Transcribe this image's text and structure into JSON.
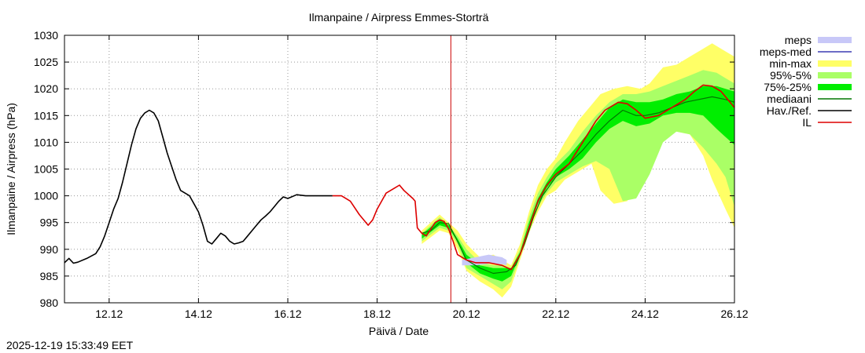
{
  "chart_data": {
    "type": "line",
    "title": "Ilmanpaine / Airpress Emmes-Storträ",
    "xlabel": "Päivä / Date",
    "ylabel": "Ilmanpaine / Airpress (hPa)",
    "timestamp": "2025-12-19 15:33:49 EET",
    "xlim": [
      11.0,
      26.0
    ],
    "ylim": [
      980,
      1030
    ],
    "x_unit": "day of December",
    "x_ticks": [
      {
        "x": 12,
        "label": "12.12"
      },
      {
        "x": 14,
        "label": "14.12"
      },
      {
        "x": 16,
        "label": "16.12"
      },
      {
        "x": 18,
        "label": "18.12"
      },
      {
        "x": 20,
        "label": "20.12"
      },
      {
        "x": 22,
        "label": "22.12"
      },
      {
        "x": 24,
        "label": "24.12"
      },
      {
        "x": 26,
        "label": "26.12"
      }
    ],
    "y_ticks": [
      980,
      985,
      990,
      995,
      1000,
      1005,
      1010,
      1015,
      1020,
      1025,
      1030
    ],
    "grid": true,
    "now_line_x": 19.65,
    "legend": [
      {
        "label": "meps",
        "kind": "band",
        "color": "#c8c8f8"
      },
      {
        "label": "meps-med",
        "kind": "line",
        "color": "#3c3cb4"
      },
      {
        "label": "min-max",
        "kind": "band",
        "color": "#ffff66"
      },
      {
        "label": "95%-5%",
        "kind": "band",
        "color": "#aaff66"
      },
      {
        "label": "75%-25%",
        "kind": "band",
        "color": "#00ee00"
      },
      {
        "label": "mediaani",
        "kind": "line",
        "color": "#007700"
      },
      {
        "label": "Hav./Ref.",
        "kind": "line",
        "color": "#000000"
      },
      {
        "label": "IL",
        "kind": "line",
        "color": "#dd0000"
      }
    ],
    "series": {
      "observed": {
        "name": "Hav./Ref.",
        "x": [
          11.0,
          11.1,
          11.2,
          11.3,
          11.5,
          11.7,
          11.8,
          11.9,
          12.0,
          12.1,
          12.2,
          12.3,
          12.4,
          12.5,
          12.6,
          12.7,
          12.8,
          12.9,
          13.0,
          13.1,
          13.2,
          13.3,
          13.4,
          13.5,
          13.6,
          13.7,
          13.8,
          13.9,
          14.0,
          14.1,
          14.2,
          14.3,
          14.4,
          14.5,
          14.6,
          14.7,
          14.8,
          14.9,
          15.0,
          15.1,
          15.2,
          15.3,
          15.4,
          15.5,
          15.6,
          15.7,
          15.8,
          15.9,
          16.0,
          16.2,
          16.4,
          16.6,
          16.8,
          17.0
        ],
        "y": [
          987.5,
          988.3,
          987.4,
          987.6,
          988.3,
          989.2,
          990.5,
          992.5,
          995.0,
          997.5,
          999.5,
          1002.5,
          1006.0,
          1009.5,
          1012.5,
          1014.5,
          1015.5,
          1016.0,
          1015.5,
          1014.0,
          1011.0,
          1008.0,
          1005.5,
          1003.0,
          1001.0,
          1000.5,
          1000.0,
          998.5,
          997.0,
          994.5,
          991.5,
          991.0,
          992.0,
          993.0,
          992.5,
          991.5,
          991.0,
          991.2,
          991.5,
          992.5,
          993.5,
          994.5,
          995.5,
          996.2,
          997.0,
          998.0,
          999.0,
          999.8,
          999.5,
          1000.2,
          1000.0,
          1000.0,
          1000.0,
          1000.0
        ]
      },
      "il": {
        "name": "IL",
        "x": [
          17.0,
          17.2,
          17.4,
          17.6,
          17.8,
          17.9,
          18.0,
          18.2,
          18.4,
          18.5,
          18.6,
          18.8,
          18.85,
          18.9,
          19.0,
          19.1,
          19.2,
          19.3,
          19.4,
          19.5,
          19.6,
          19.7,
          19.8,
          20.0,
          20.2,
          20.5,
          20.8,
          21.0,
          21.2,
          21.4,
          21.6,
          21.8,
          22.0,
          22.3,
          22.6,
          22.9,
          23.1,
          23.4,
          23.6,
          23.8,
          24.0,
          24.3,
          24.6,
          24.9,
          25.1,
          25.3,
          25.5,
          25.7,
          26.0
        ],
        "y": [
          1000.0,
          1000.0,
          999.0,
          996.5,
          994.5,
          995.5,
          997.5,
          1000.5,
          1001.5,
          1002.0,
          1001.0,
          999.5,
          999.0,
          994.0,
          993.0,
          992.5,
          993.8,
          995.0,
          995.5,
          995.2,
          993.8,
          991.5,
          989.0,
          988.0,
          987.5,
          987.5,
          987.0,
          986.2,
          989.0,
          994.0,
          999.0,
          1002.0,
          1004.0,
          1006.0,
          1010.0,
          1014.0,
          1016.0,
          1017.5,
          1017.2,
          1016.0,
          1014.5,
          1015.0,
          1016.5,
          1018.0,
          1019.5,
          1020.7,
          1020.5,
          1019.5,
          1016.5
        ]
      },
      "median": {
        "name": "mediaani",
        "x": [
          19.0,
          19.2,
          19.4,
          19.6,
          19.8,
          20.0,
          20.3,
          20.6,
          20.9,
          21.1,
          21.3,
          21.5,
          21.7,
          22.0,
          22.3,
          22.6,
          22.9,
          23.2,
          23.5,
          23.8,
          24.0,
          24.3,
          24.6,
          24.9,
          25.2,
          25.5,
          25.8,
          26.0
        ],
        "y": [
          993.0,
          993.5,
          995.0,
          994.8,
          991.5,
          988.0,
          986.5,
          985.5,
          985.8,
          987.0,
          991.0,
          996.0,
          1000.0,
          1003.5,
          1006.0,
          1008.5,
          1011.5,
          1014.0,
          1016.0,
          1015.0,
          1015.0,
          1015.5,
          1016.5,
          1017.5,
          1018.0,
          1018.5,
          1018.0,
          1017.5
        ]
      },
      "minmax": {
        "name": "min-max",
        "x": [
          19.0,
          19.4,
          19.6,
          19.8,
          20.0,
          20.3,
          20.6,
          20.8,
          21.0,
          21.2,
          21.4,
          21.6,
          21.8,
          22.0,
          22.2,
          22.5,
          22.8,
          23.0,
          23.3,
          23.6,
          23.9,
          24.1,
          24.4,
          24.7,
          25.0,
          25.3,
          25.5,
          25.8,
          26.0
        ],
        "upper": [
          993.5,
          996.5,
          995.0,
          993.5,
          991.0,
          988.5,
          989.0,
          988.0,
          987.0,
          991.0,
          997.0,
          1002.0,
          1005.0,
          1007.0,
          1010.0,
          1014.0,
          1017.0,
          1019.0,
          1020.0,
          1020.5,
          1020.0,
          1021.0,
          1024.0,
          1024.5,
          1026.0,
          1027.5,
          1028.5,
          1027.0,
          1026.0
        ],
        "lower": [
          991.0,
          993.5,
          993.0,
          990.0,
          986.0,
          984.0,
          982.5,
          981.0,
          983.0,
          988.0,
          993.0,
          997.0,
          1000.0,
          1001.0,
          1003.0,
          1004.5,
          1006.0,
          1001.0,
          998.5,
          999.0,
          1004.0,
          1008.0,
          1012.0,
          1012.0,
          1011.5,
          1007.5,
          1003.0,
          997.5,
          994.0
        ]
      },
      "p95p5": {
        "name": "95%-5%",
        "x": [
          19.0,
          19.4,
          19.6,
          19.8,
          20.0,
          20.3,
          20.6,
          20.8,
          21.0,
          21.2,
          21.4,
          21.6,
          21.8,
          22.0,
          22.3,
          22.6,
          22.9,
          23.2,
          23.5,
          23.8,
          24.1,
          24.4,
          24.7,
          25.0,
          25.3,
          25.6,
          25.8,
          26.0
        ],
        "upper": [
          993.0,
          996.0,
          994.5,
          992.5,
          990.0,
          987.5,
          987.0,
          987.0,
          986.5,
          990.0,
          996.0,
          1000.5,
          1003.5,
          1006.0,
          1008.5,
          1012.0,
          1015.0,
          1017.5,
          1019.0,
          1019.0,
          1019.5,
          1020.5,
          1021.5,
          1022.5,
          1023.5,
          1023.0,
          1022.0,
          1021.0
        ],
        "lower": [
          991.5,
          994.0,
          993.5,
          991.0,
          986.5,
          985.0,
          983.5,
          982.5,
          984.0,
          988.5,
          994.0,
          998.0,
          1000.5,
          1002.5,
          1004.0,
          1005.5,
          1006.5,
          1005.0,
          999.0,
          999.5,
          1004.0,
          1010.0,
          1012.0,
          1011.5,
          1009.0,
          1006.0,
          1003.5,
          998.0
        ]
      },
      "p75p25": {
        "name": "75%-25%",
        "x": [
          19.0,
          19.4,
          19.6,
          19.8,
          20.0,
          20.3,
          20.6,
          20.8,
          21.0,
          21.2,
          21.4,
          21.6,
          21.8,
          22.0,
          22.3,
          22.6,
          22.9,
          23.2,
          23.5,
          23.8,
          24.1,
          24.4,
          24.7,
          25.0,
          25.3,
          25.6,
          25.8,
          26.0
        ],
        "upper": [
          992.8,
          995.5,
          994.5,
          992.0,
          989.0,
          987.0,
          986.5,
          986.5,
          986.5,
          989.5,
          995.0,
          999.5,
          1002.5,
          1005.0,
          1007.5,
          1010.5,
          1013.5,
          1016.5,
          1018.0,
          1017.5,
          1017.5,
          1018.0,
          1019.0,
          1019.5,
          1020.5,
          1020.5,
          1020.0,
          1019.5
        ],
        "lower": [
          992.0,
          994.5,
          994.0,
          991.5,
          987.5,
          985.5,
          984.5,
          984.0,
          985.0,
          989.0,
          994.5,
          998.5,
          1001.5,
          1003.5,
          1005.0,
          1007.0,
          1010.0,
          1012.5,
          1014.0,
          1013.0,
          1013.5,
          1015.0,
          1015.5,
          1015.5,
          1015.0,
          1012.5,
          1011.0,
          1009.5
        ]
      },
      "meps": {
        "name": "meps",
        "x": [
          19.9,
          20.2,
          20.5,
          20.8,
          20.9
        ],
        "upper": [
          988.0,
          988.5,
          989.0,
          988.5,
          988.0
        ],
        "lower": [
          987.0,
          987.0,
          987.3,
          987.2,
          987.0
        ]
      }
    }
  }
}
